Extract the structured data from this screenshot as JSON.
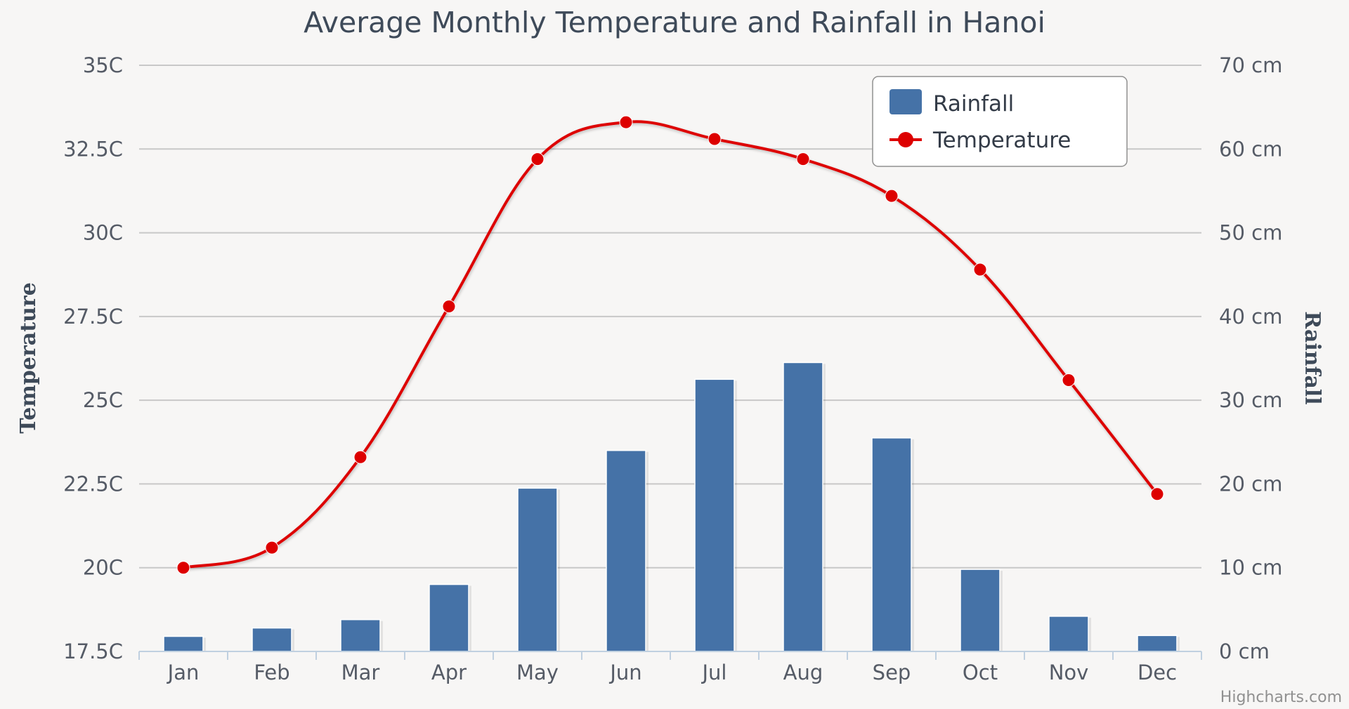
{
  "chart_data": {
    "type": "bar+line",
    "title": "Average Monthly Temperature and Rainfall in Hanoi",
    "categories": [
      "Jan",
      "Feb",
      "Mar",
      "Apr",
      "May",
      "Jun",
      "Jul",
      "Aug",
      "Sep",
      "Oct",
      "Nov",
      "Dec"
    ],
    "series": [
      {
        "name": "Rainfall",
        "type": "column",
        "axis": "right",
        "unit": "cm",
        "color": "#4572a7",
        "values": [
          1.8,
          2.8,
          3.8,
          8.0,
          19.5,
          24.0,
          32.5,
          34.5,
          25.5,
          9.8,
          4.2,
          1.9
        ]
      },
      {
        "name": "Temperature",
        "type": "spline",
        "axis": "left",
        "unit": "C",
        "color": "#dd0000",
        "values": [
          20.0,
          20.6,
          23.3,
          27.8,
          32.2,
          33.3,
          32.8,
          32.2,
          31.1,
          28.9,
          25.6,
          22.2
        ]
      }
    ],
    "y_left": {
      "title": "Temperature",
      "min": 17.5,
      "max": 35,
      "step": 2.5,
      "tick_labels": [
        "17.5C",
        "20C",
        "22.5C",
        "25C",
        "27.5C",
        "30C",
        "32.5C",
        "35C"
      ]
    },
    "y_right": {
      "title": "Rainfall",
      "min": 0,
      "max": 70,
      "step": 10,
      "tick_labels": [
        "0 cm",
        "10 cm",
        "20 cm",
        "30 cm",
        "40 cm",
        "50 cm",
        "60 cm",
        "70 cm"
      ]
    },
    "legend": {
      "position": "top-right",
      "items": [
        "Rainfall",
        "Temperature"
      ]
    },
    "credits": "Highcharts.com",
    "grid": true
  }
}
